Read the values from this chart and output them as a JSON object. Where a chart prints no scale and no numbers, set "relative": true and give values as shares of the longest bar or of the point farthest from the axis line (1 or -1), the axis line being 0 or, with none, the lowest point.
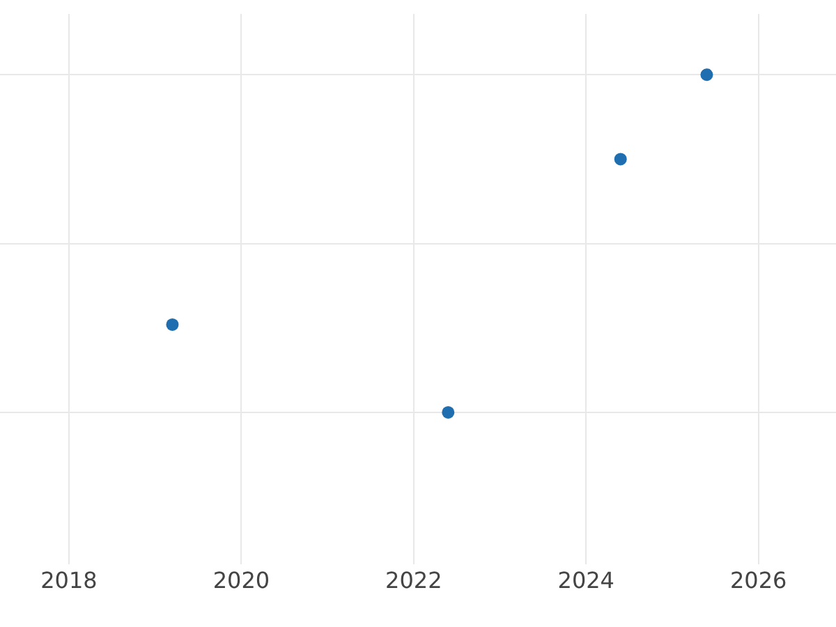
{
  "chart_data": {
    "type": "scatter",
    "relative": true,
    "x": [
      2019.2,
      2022.4,
      2024.4,
      2025.4
    ],
    "values": [
      0.26,
      0,
      0.75,
      1
    ],
    "color": "#1f6fb0",
    "xlim": [
      2017.2,
      2026.9
    ],
    "xticks": [
      2018,
      2020,
      2022,
      2024,
      2026
    ],
    "grid": true,
    "marker": "circle",
    "tick_labels": "x"
  }
}
